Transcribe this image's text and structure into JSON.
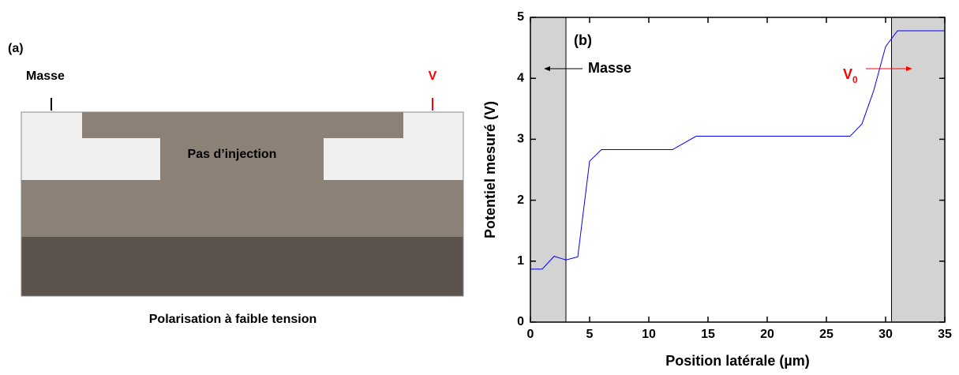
{
  "panel_a": {
    "label": "(a)",
    "left_contact": "Masse",
    "right_contact": "V",
    "center_label": "Pas d’injection",
    "caption": "Polarisation à faible tension"
  },
  "chart_data": {
    "type": "line",
    "panel_label": "(b)",
    "xlabel": "Position latérale (µm)",
    "ylabel": "Potentiel mesuré (V)",
    "x": [
      0,
      1,
      2,
      2.5,
      3,
      4,
      5,
      6,
      12,
      14,
      27,
      28,
      29,
      30,
      31,
      35
    ],
    "values": [
      0.87,
      0.87,
      1.08,
      1.05,
      1.02,
      1.07,
      2.64,
      2.83,
      2.83,
      3.05,
      3.05,
      3.25,
      3.8,
      4.52,
      4.78,
      4.78
    ],
    "color": "#0000ff",
    "xlim": [
      0,
      35
    ],
    "ylim": [
      0,
      5
    ],
    "xticks": [
      0,
      5,
      10,
      15,
      20,
      25,
      30,
      35
    ],
    "yticks": [
      0,
      1,
      2,
      3,
      4,
      5
    ],
    "shaded_regions": [
      [
        0,
        3
      ],
      [
        30.5,
        35
      ]
    ],
    "annotations": [
      {
        "text": "Masse",
        "color": "#000000"
      },
      {
        "text": "V",
        "subscript": "0",
        "color": "#ff0000"
      }
    ]
  }
}
